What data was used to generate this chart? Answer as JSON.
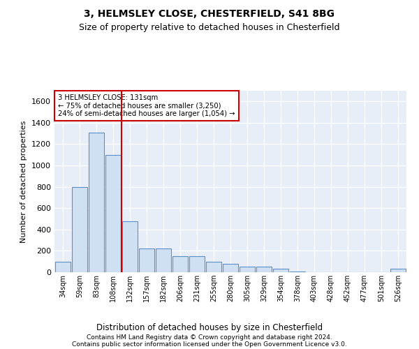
{
  "title1": "3, HELMSLEY CLOSE, CHESTERFIELD, S41 8BG",
  "title2": "Size of property relative to detached houses in Chesterfield",
  "xlabel": "Distribution of detached houses by size in Chesterfield",
  "ylabel": "Number of detached properties",
  "bar_labels": [
    "34sqm",
    "59sqm",
    "83sqm",
    "108sqm",
    "132sqm",
    "157sqm",
    "182sqm",
    "206sqm",
    "231sqm",
    "255sqm",
    "280sqm",
    "305sqm",
    "329sqm",
    "354sqm",
    "378sqm",
    "403sqm",
    "428sqm",
    "452sqm",
    "477sqm",
    "501sqm",
    "526sqm"
  ],
  "bar_values": [
    100,
    800,
    1310,
    1100,
    480,
    220,
    220,
    150,
    150,
    100,
    80,
    55,
    55,
    30,
    5,
    2,
    2,
    2,
    2,
    2,
    30
  ],
  "bar_color": "#cfe0f3",
  "bar_edge_color": "#5b8fc9",
  "vline_index": 4,
  "vline_color": "#cc0000",
  "annotation_text": "3 HELMSLEY CLOSE: 131sqm\n← 75% of detached houses are smaller (3,250)\n24% of semi-detached houses are larger (1,054) →",
  "annotation_box_facecolor": "#ffffff",
  "annotation_box_edgecolor": "#cc0000",
  "ylim": [
    0,
    1700
  ],
  "yticks": [
    0,
    200,
    400,
    600,
    800,
    1000,
    1200,
    1400,
    1600
  ],
  "footer1": "Contains HM Land Registry data © Crown copyright and database right 2024.",
  "footer2": "Contains public sector information licensed under the Open Government Licence v3.0.",
  "bg_color": "#e8eef8",
  "grid_color": "#ffffff"
}
